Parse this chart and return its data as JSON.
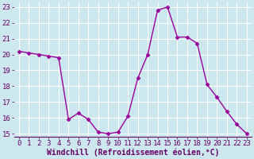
{
  "x": [
    0,
    1,
    2,
    3,
    4,
    5,
    6,
    7,
    8,
    9,
    10,
    11,
    12,
    13,
    14,
    15,
    16,
    17,
    18,
    19,
    20,
    21,
    22,
    23
  ],
  "y": [
    20.2,
    20.1,
    20.0,
    19.9,
    19.8,
    15.9,
    16.3,
    15.9,
    15.1,
    15.0,
    15.1,
    16.1,
    18.5,
    20.0,
    22.8,
    23.0,
    21.1,
    21.1,
    20.7,
    18.1,
    17.3,
    16.4,
    15.6,
    15.0
  ],
  "line_color": "#990099",
  "marker": "D",
  "marker_size": 2.5,
  "xlim_min": -0.5,
  "xlim_max": 23.5,
  "ylim_min": 14.8,
  "ylim_max": 23.3,
  "yticks": [
    15,
    16,
    17,
    18,
    19,
    20,
    21,
    22,
    23
  ],
  "xticks": [
    0,
    1,
    2,
    3,
    4,
    5,
    6,
    7,
    8,
    9,
    10,
    11,
    12,
    13,
    14,
    15,
    16,
    17,
    18,
    19,
    20,
    21,
    22,
    23
  ],
  "background_color": "#cce8ee",
  "grid_color": "#ffffff",
  "tick_color": "#660066",
  "label_color": "#660066",
  "xlabel": "Windchill (Refroidissement éolien,°C)",
  "xlabel_fontsize": 7,
  "tick_fontsize": 6.5,
  "linewidth": 1.0
}
